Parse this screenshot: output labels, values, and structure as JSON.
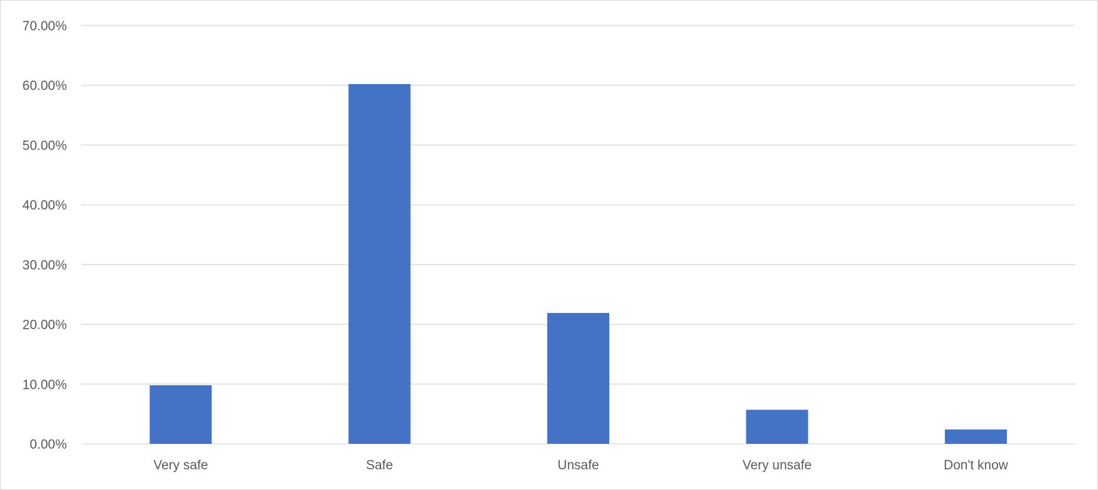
{
  "chart_data": {
    "type": "bar",
    "categories": [
      "Very safe",
      "Safe",
      "Unsafe",
      "Very unsafe",
      "Don't know"
    ],
    "values": [
      9.8,
      60.2,
      21.9,
      5.7,
      2.4
    ],
    "value_format": "percent",
    "title": "",
    "xlabel": "",
    "ylabel": "",
    "ylim": [
      0,
      70
    ],
    "yticks": [
      "0.00%",
      "10.00%",
      "20.00%",
      "30.00%",
      "40.00%",
      "50.00%",
      "60.00%",
      "70.00%"
    ],
    "grid": true,
    "legend": "none",
    "bar_color": "#4472c4"
  }
}
